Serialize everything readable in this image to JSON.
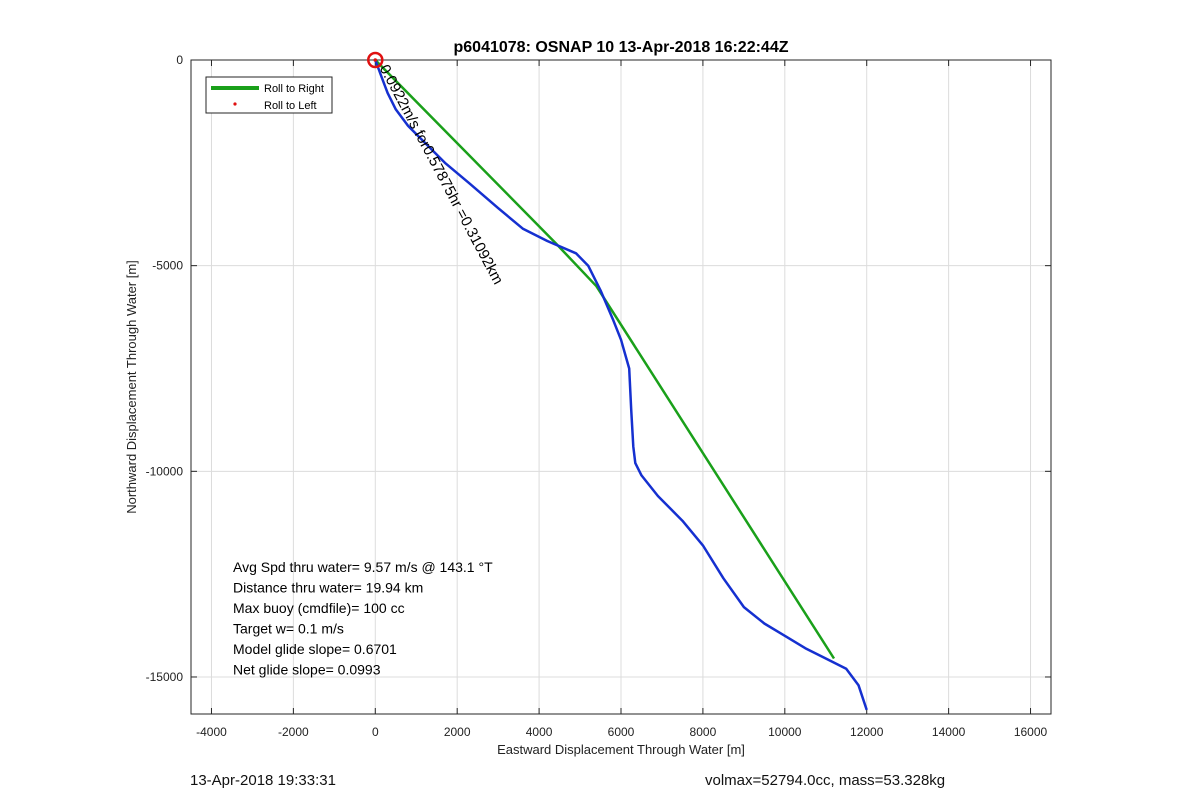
{
  "chart_data": {
    "type": "line",
    "title": "p6041078: OSNAP 10 13-Apr-2018 16:22:44Z",
    "xlabel": "Eastward Displacement Through Water [m]",
    "ylabel": "Northward Displacement Through Water [m]",
    "xlim": [
      -4500,
      16500
    ],
    "ylim": [
      -15900,
      0
    ],
    "xticks": [
      -4000,
      -2000,
      0,
      2000,
      4000,
      6000,
      8000,
      10000,
      12000,
      14000,
      16000
    ],
    "yticks": [
      0,
      -5000,
      -10000,
      -15000
    ],
    "grid": true,
    "legend": {
      "placement": "top-left",
      "entries": [
        "Roll to Right",
        "Roll to Left"
      ]
    },
    "series": [
      {
        "name": "Roll to Right",
        "color": "#1aa01a",
        "x": [
          0,
          4400,
          5400,
          11200,
          11200
        ],
        "y": [
          0,
          -4450,
          -5500,
          -14550,
          -14550
        ]
      },
      {
        "name": "Roll to Left",
        "color": "#e01010",
        "x": [
          0
        ],
        "y": [
          0
        ]
      },
      {
        "name": "",
        "color": "#1530d0",
        "x": [
          0,
          150,
          300,
          500,
          800,
          1200,
          1700,
          2300,
          3000,
          3600,
          4200,
          4900,
          5200,
          5500,
          5800,
          6000,
          6200,
          6250,
          6300,
          6350,
          6500,
          6900,
          7500,
          8000,
          8500,
          9000,
          9500,
          10000,
          10500,
          11000,
          11500,
          11800,
          12000
        ],
        "y": [
          0,
          -400,
          -800,
          -1200,
          -1600,
          -2000,
          -2500,
          -3000,
          -3600,
          -4100,
          -4400,
          -4700,
          -5000,
          -5600,
          -6300,
          -6800,
          -7500,
          -8500,
          -9400,
          -9800,
          -10100,
          -10600,
          -11200,
          -11800,
          -12600,
          -13300,
          -13700,
          -14000,
          -14300,
          -14550,
          -14800,
          -15200,
          -15800
        ]
      }
    ],
    "annotations": {
      "start_marker": {
        "x": 0,
        "y": 0,
        "color": "#e01010"
      },
      "current_label": "0.0922m/s for0.57875hr =0.31092km",
      "stats": [
        "Avg Spd thru water=  9.57 m/s @ 143.1 °T",
        "Distance thru water= 19.94 km",
        "Max buoy (cmdfile)= 100 cc",
        "Target w= 0.1 m/s",
        "Model glide slope= 0.6701",
        "Net glide slope= 0.0993"
      ]
    }
  },
  "footer": {
    "timestamp": "13-Apr-2018 19:33:31",
    "summary": "volmax=52794.0cc, mass=53.328kg"
  }
}
